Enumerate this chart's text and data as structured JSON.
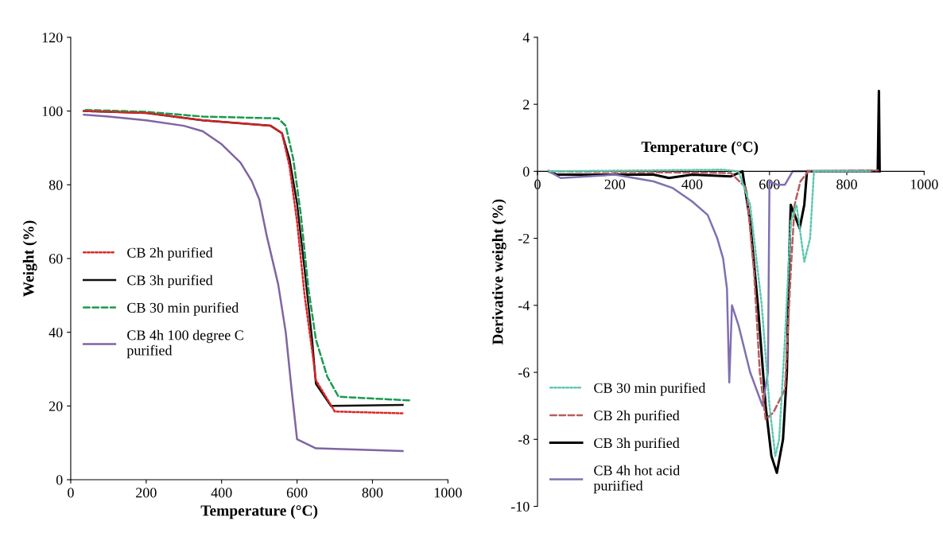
{
  "chart_data": [
    {
      "type": "line",
      "xlabel": "Temperature (°C)",
      "ylabel": "Weight (%)",
      "xlim": [
        0,
        1000
      ],
      "ylim": [
        0,
        120
      ],
      "xticks": [
        0,
        200,
        400,
        600,
        800,
        1000
      ],
      "yticks": [
        0,
        20,
        40,
        60,
        80,
        100,
        120
      ],
      "grid": false,
      "legend": "left",
      "marker": "none",
      "series": [
        {
          "name": "CB 2h purified",
          "color": "#e02424",
          "line_style": "dotted",
          "x": [
            35,
            200,
            350,
            530,
            560,
            580,
            600,
            620,
            640,
            650,
            700,
            880
          ],
          "values": [
            100,
            99.5,
            97.5,
            96,
            94,
            85,
            70,
            50,
            35,
            27,
            18.5,
            18
          ]
        },
        {
          "name": "CB 3h purified",
          "color": "#111111",
          "line_style": "solid",
          "x": [
            35,
            200,
            350,
            530,
            560,
            580,
            600,
            620,
            640,
            650,
            690,
            880
          ],
          "values": [
            100,
            99.5,
            97.5,
            96,
            94,
            87,
            75,
            57,
            38,
            26,
            20,
            20.3
          ]
        },
        {
          "name": "CB 30 min purified",
          "color": "#1a9a50",
          "line_style": "dashed",
          "x": [
            40,
            200,
            350,
            550,
            570,
            590,
            610,
            630,
            650,
            680,
            710,
            900
          ],
          "values": [
            100.3,
            99.8,
            98.5,
            98,
            96,
            87,
            72,
            52,
            38,
            28,
            22.5,
            21.5
          ]
        },
        {
          "name": "CB 4h 100 degree C\npurified",
          "color": "#8064a2",
          "line_style": "solid",
          "x": [
            35,
            100,
            200,
            300,
            350,
            400,
            450,
            480,
            500,
            520,
            550,
            570,
            585,
            600,
            650,
            880
          ],
          "values": [
            99,
            98.5,
            97.5,
            96,
            94.5,
            91,
            86,
            81,
            76,
            66,
            53,
            40,
            25,
            11,
            8.5,
            7.8
          ]
        }
      ]
    },
    {
      "type": "line",
      "xlabel": "Temperature (°C)",
      "ylabel": "Derivative weight (%)",
      "xlim": [
        0,
        1000
      ],
      "ylim": [
        -10,
        4
      ],
      "xticks": [
        0,
        200,
        400,
        600,
        800,
        1000
      ],
      "yticks": [
        -10,
        -8,
        -6,
        -4,
        -2,
        0,
        2,
        4
      ],
      "grid": false,
      "legend": "bottom left",
      "marker": "none",
      "series": [
        {
          "name": "CB 30 min purified",
          "color": "#5cc8b0",
          "line_style": "dotted",
          "x": [
            30,
            480,
            520,
            550,
            580,
            600,
            615,
            625,
            640,
            655,
            670,
            690,
            705,
            715,
            860
          ],
          "values": [
            0,
            0.05,
            0,
            -1,
            -4,
            -7,
            -8.5,
            -8,
            -5,
            -1.5,
            -1,
            -2.7,
            -2,
            0,
            0
          ]
        },
        {
          "name": "CB 2h purified",
          "color": "#b85c5c",
          "line_style": "dashed",
          "x": [
            30,
            500,
            540,
            560,
            575,
            590,
            610,
            640,
            655,
            665,
            680,
            700,
            880
          ],
          "values": [
            0,
            -0.05,
            -0.5,
            -3,
            -6,
            -7.4,
            -7.2,
            -6.5,
            -3,
            -1,
            -0.3,
            0,
            0.03
          ]
        },
        {
          "name": "CB 3h purified",
          "color": "#000000",
          "line_style": "solid",
          "x": [
            30,
            50,
            300,
            340,
            400,
            500,
            530,
            550,
            570,
            590,
            605,
            619,
            635,
            645,
            650,
            655,
            665,
            678,
            690,
            697,
            880,
            883,
            885
          ],
          "values": [
            0,
            -0.1,
            -0.1,
            -0.2,
            -0.1,
            -0.15,
            0,
            -1.5,
            -4,
            -7,
            -8.5,
            -9,
            -8,
            -6,
            -3,
            -1,
            -1.3,
            -1.7,
            -1,
            0,
            0,
            2.4,
            0
          ]
        },
        {
          "name": "CB 4h hot acid\npuriified",
          "color": "#8070b0",
          "line_style": "solid",
          "x": [
            30,
            60,
            200,
            300,
            350,
            400,
            440,
            465,
            480,
            490,
            496,
            503,
            520,
            550,
            582,
            596,
            600,
            620,
            640,
            660,
            880
          ],
          "values": [
            0,
            -0.2,
            -0.1,
            -0.3,
            -0.5,
            -0.9,
            -1.3,
            -2,
            -2.6,
            -3.5,
            -6.3,
            -4,
            -4.6,
            -6,
            -7,
            -6,
            -0.3,
            -0.4,
            -0.4,
            0,
            0
          ]
        }
      ]
    }
  ]
}
